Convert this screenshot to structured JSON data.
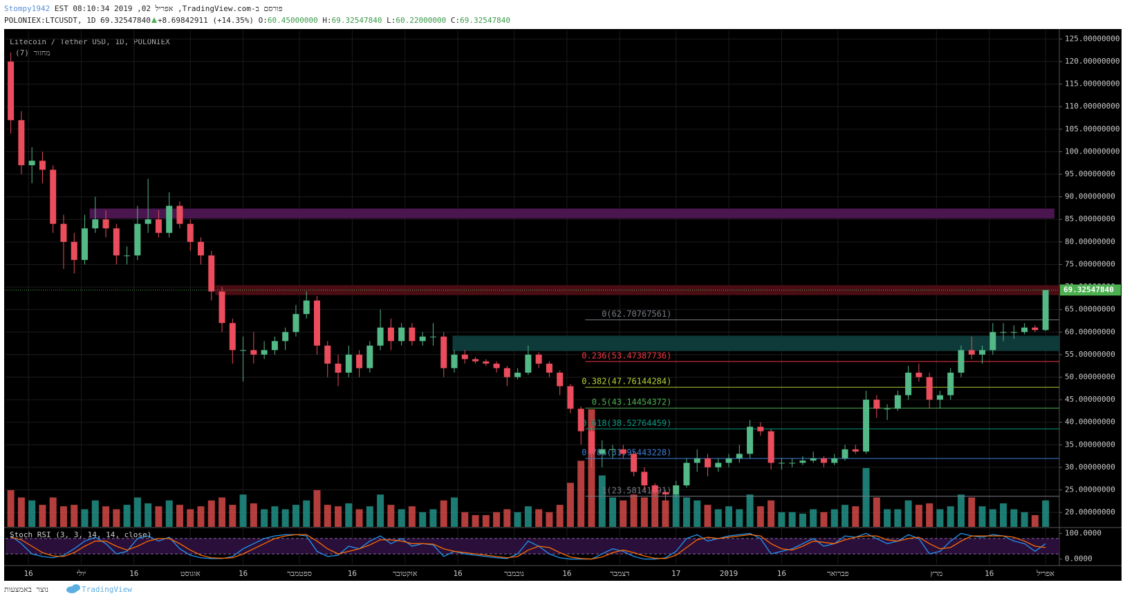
{
  "header": {
    "author": "Stompy1942",
    "published": "פורסם ב-TradingView.com, אפריל 02, 2019 08:10:34 EST",
    "symbol": "POLONIEX:LTCUSDT, 1D",
    "last": "69.32547840",
    "change": "+8.69842911 (+14.35%)",
    "ohlc_labels": [
      "O:",
      "H:",
      "L:",
      "C:"
    ],
    "ohlc_values": [
      "60.45000000",
      "69.32547840",
      "60.22000000",
      "69.32547840"
    ]
  },
  "footer": {
    "made_with": "נוצר באמצעות",
    "brand": "TradingView"
  },
  "chart_data": {
    "type": "candlestick",
    "title": "Litecoin / Tether USD, 1D, POLONIEX",
    "volume_label": "מחזור (7)",
    "up_color": "#53b987",
    "down_color": "#eb4d5c",
    "grid": true,
    "xlim": [
      0,
      299.4
    ],
    "xticks": [
      {
        "value": 6.5,
        "label": "16"
      },
      {
        "value": 21.5,
        "label": "יולי"
      },
      {
        "value": 36.5,
        "label": "16"
      },
      {
        "value": 52.5,
        "label": "אוגוסט"
      },
      {
        "value": 67.5,
        "label": "16"
      },
      {
        "value": 83.5,
        "label": "ספטמבר"
      },
      {
        "value": 98.5,
        "label": "16"
      },
      {
        "value": 113.5,
        "label": "אוקטובר"
      },
      {
        "value": 128.5,
        "label": "16"
      },
      {
        "value": 144.5,
        "label": "נובמבר"
      },
      {
        "value": 159.5,
        "label": "16"
      },
      {
        "value": 174.5,
        "label": "דצמבר"
      },
      {
        "value": 190.5,
        "label": "17"
      },
      {
        "value": 205.5,
        "label": "2019"
      },
      {
        "value": 220.5,
        "label": "16"
      },
      {
        "value": 236.5,
        "label": "פברואר"
      },
      {
        "value": 264.5,
        "label": "מרץ"
      },
      {
        "value": 279.5,
        "label": "16"
      },
      {
        "value": 295.5,
        "label": "אפריל"
      }
    ],
    "ylim": [
      16.8,
      126.9
    ],
    "yticks": [
      {
        "value": 20,
        "label": "20.00000000"
      },
      {
        "value": 25,
        "label": "25.00000000"
      },
      {
        "value": 30,
        "label": "30.00000000"
      },
      {
        "value": 35,
        "label": "35.00000000"
      },
      {
        "value": 40,
        "label": "40.00000000"
      },
      {
        "value": 45,
        "label": "45.00000000"
      },
      {
        "value": 50,
        "label": "50.00000000"
      },
      {
        "value": 55,
        "label": "55.00000000"
      },
      {
        "value": 60,
        "label": "60.00000000"
      },
      {
        "value": 65,
        "label": "65.00000000"
      },
      {
        "value": 70,
        "label": "70.00000000"
      },
      {
        "value": 75,
        "label": "75.00000000"
      },
      {
        "value": 80,
        "label": "80.00000000"
      },
      {
        "value": 85,
        "label": "85.00000000"
      },
      {
        "value": 90,
        "label": "90.00000000"
      },
      {
        "value": 95,
        "label": "95.00000000"
      },
      {
        "value": 100,
        "label": "100.00000000"
      },
      {
        "value": 105,
        "label": "105.00000000"
      },
      {
        "value": 110,
        "label": "110.00000000"
      },
      {
        "value": 115,
        "label": "115.00000000"
      },
      {
        "value": 120,
        "label": "120.00000000"
      },
      {
        "value": 125,
        "label": "125.00000000"
      }
    ],
    "ohlc": [
      [
        120,
        122,
        104,
        107
      ],
      [
        107,
        109,
        95,
        97
      ],
      [
        97,
        101,
        93,
        98
      ],
      [
        98,
        100,
        93,
        96
      ],
      [
        96,
        97,
        82,
        84
      ],
      [
        84,
        86,
        74,
        80
      ],
      [
        80,
        82,
        73,
        76
      ],
      [
        76,
        86,
        75,
        83
      ],
      [
        83,
        90,
        82,
        85
      ],
      [
        85,
        87,
        81,
        83
      ],
      [
        83,
        84,
        75,
        77
      ],
      [
        77,
        79,
        75,
        77
      ],
      [
        77,
        88,
        76,
        84
      ],
      [
        84,
        94,
        82,
        85
      ],
      [
        85,
        87,
        81,
        82
      ],
      [
        82,
        91,
        81,
        88
      ],
      [
        88,
        89,
        83,
        84
      ],
      [
        84,
        85,
        78,
        80
      ],
      [
        80,
        81,
        75,
        77
      ],
      [
        77,
        78,
        67,
        69
      ],
      [
        69,
        70,
        60,
        62
      ],
      [
        62,
        63,
        53,
        56
      ],
      [
        56,
        59,
        49,
        56
      ],
      [
        56,
        60,
        53,
        55
      ],
      [
        55,
        58,
        54,
        56
      ],
      [
        56,
        59,
        55,
        58
      ],
      [
        58,
        61,
        56,
        60
      ],
      [
        60,
        66,
        59,
        64
      ],
      [
        64,
        69,
        63,
        67
      ],
      [
        67,
        68,
        55,
        57
      ],
      [
        57,
        58,
        50,
        53
      ],
      [
        53,
        55,
        48,
        51
      ],
      [
        51,
        57,
        50,
        55
      ],
      [
        55,
        56,
        50,
        52
      ],
      [
        52,
        58,
        51,
        57
      ],
      [
        57,
        65,
        56,
        61
      ],
      [
        61,
        63,
        56,
        58
      ],
      [
        58,
        62,
        57,
        61
      ],
      [
        61,
        62,
        57,
        58
      ],
      [
        58,
        60,
        57,
        59
      ],
      [
        59,
        62,
        57,
        59
      ],
      [
        59,
        60,
        50,
        52
      ],
      [
        52,
        56,
        51,
        55
      ],
      [
        55,
        56,
        53,
        54
      ],
      [
        54,
        54.5,
        53,
        53.5
      ],
      [
        53.5,
        54,
        52.5,
        53
      ],
      [
        53,
        53.5,
        51,
        52
      ],
      [
        52,
        52.5,
        48,
        50
      ],
      [
        50,
        52,
        49.5,
        51
      ],
      [
        51,
        57,
        50.5,
        55
      ],
      [
        55,
        55.5,
        52,
        53
      ],
      [
        53,
        53.5,
        50,
        51
      ],
      [
        51,
        51.5,
        46,
        48
      ],
      [
        48,
        48.5,
        42,
        43
      ],
      [
        43,
        43.5,
        35,
        38
      ],
      [
        38,
        39,
        30,
        33
      ],
      [
        33,
        36,
        30,
        34
      ],
      [
        34,
        35,
        32,
        34
      ],
      [
        34,
        35,
        32,
        33
      ],
      [
        33,
        33.5,
        28,
        29
      ],
      [
        29,
        30,
        25,
        26
      ],
      [
        26,
        26.5,
        23.5,
        24.5
      ],
      [
        24.5,
        25,
        22.5,
        24
      ],
      [
        24,
        27,
        23.5,
        26
      ],
      [
        26,
        32,
        25.5,
        31
      ],
      [
        31,
        34,
        29,
        32
      ],
      [
        32,
        33,
        28,
        30
      ],
      [
        30,
        32,
        29,
        31
      ],
      [
        31,
        33,
        30,
        32
      ],
      [
        32,
        35,
        31,
        33
      ],
      [
        33,
        40.5,
        32,
        39
      ],
      [
        39,
        40,
        37,
        38
      ],
      [
        38,
        38.5,
        29.5,
        31
      ],
      [
        31,
        32,
        29.5,
        31
      ],
      [
        31,
        32,
        30,
        31
      ],
      [
        31,
        32.5,
        30.5,
        31.5
      ],
      [
        31.5,
        33.5,
        31,
        32
      ],
      [
        32,
        32.5,
        30,
        31
      ],
      [
        31,
        33,
        30.5,
        32
      ],
      [
        32,
        35,
        31.5,
        34
      ],
      [
        34,
        35,
        33,
        33.5
      ],
      [
        33.5,
        47,
        33,
        45
      ],
      [
        45,
        46,
        41,
        43
      ],
      [
        43,
        44,
        40.5,
        43
      ],
      [
        43,
        47,
        42.5,
        46
      ],
      [
        46,
        52.5,
        45,
        51
      ],
      [
        51,
        53,
        49,
        50
      ],
      [
        50,
        51,
        43,
        45
      ],
      [
        45,
        47,
        43,
        46
      ],
      [
        46,
        52,
        45,
        51
      ],
      [
        51,
        57,
        50,
        56
      ],
      [
        56,
        59,
        54,
        55
      ],
      [
        55,
        57,
        53,
        56
      ],
      [
        56,
        62,
        55,
        60
      ],
      [
        60,
        62,
        58,
        60
      ],
      [
        60,
        61.5,
        58.5,
        60
      ],
      [
        60,
        62,
        59.5,
        61
      ],
      [
        61,
        61.5,
        60,
        60.45
      ],
      [
        60.45,
        69.3254784,
        60.22,
        69.3254784
      ]
    ],
    "volume": [
      25,
      20,
      18,
      15,
      20,
      14,
      15,
      12,
      18,
      14,
      12,
      15,
      20,
      16,
      14,
      18,
      15,
      12,
      14,
      18,
      20,
      15,
      22,
      16,
      12,
      14,
      12,
      15,
      18,
      25,
      15,
      14,
      16,
      12,
      14,
      22,
      15,
      12,
      14,
      10,
      12,
      18,
      20,
      10,
      8,
      8,
      10,
      12,
      10,
      14,
      12,
      10,
      15,
      30,
      45,
      80,
      35,
      20,
      18,
      22,
      20,
      25,
      18,
      22,
      20,
      18,
      15,
      12,
      14,
      12,
      22,
      14,
      18,
      10,
      10,
      9,
      12,
      10,
      12,
      15,
      14,
      40,
      20,
      12,
      12,
      18,
      15,
      16,
      12,
      14,
      22,
      20,
      14,
      12,
      16,
      12,
      10,
      8,
      18
    ],
    "zones": [
      {
        "from": 85.2,
        "to": 87.4,
        "start": 23.9,
        "end": 298,
        "color": "#4b1650"
      },
      {
        "from": 68.2,
        "to": 70.4,
        "start": 59.6,
        "end": 299.4,
        "color": "#4a0d14"
      },
      {
        "from": 55.8,
        "to": 59.2,
        "start": 127,
        "end": 299.4,
        "color": "#0e3a3a"
      }
    ],
    "fib": {
      "start": 164.7,
      "end": 299.4,
      "levels": [
        {
          "label": "0(62.70767561)",
          "value": 62.70767561,
          "color": "#787b86"
        },
        {
          "label": "0.236(53.47387736)",
          "value": 53.47387736,
          "color": "#f23645"
        },
        {
          "label": "0.382(47.76144284)",
          "value": 47.76144284,
          "color": "#b5d334"
        },
        {
          "label": "0.5(43.14454372)",
          "value": 43.14454372,
          "color": "#4caf50"
        },
        {
          "label": "0.618(38.52764459)",
          "value": 38.52764459,
          "color": "#089981"
        },
        {
          "label": "0.786(31.95443228)",
          "value": 31.95443228,
          "color": "#3f7fd8"
        },
        {
          "label": "1(23.58141191)",
          "value": 23.58141191,
          "color": "#787b86"
        }
      ]
    },
    "last_price": {
      "value": 69.3254784,
      "label": "69.32547840",
      "color": "#4caf50"
    },
    "stoch": {
      "title": "Stoch RSI (3, 3, 14, 14, close)",
      "ylim": [
        -20,
        120
      ],
      "yticks": [
        {
          "value": 100,
          "label": "100.0000"
        },
        {
          "value": 0,
          "label": "0.0000"
        }
      ],
      "bands": [
        20,
        80
      ],
      "k_color": "#2196f3",
      "d_color": "#ff6d00",
      "k": [
        90,
        60,
        20,
        10,
        5,
        15,
        40,
        70,
        85,
        60,
        20,
        30,
        80,
        90,
        70,
        85,
        40,
        15,
        5,
        2,
        2,
        10,
        40,
        60,
        80,
        90,
        95,
        95,
        90,
        30,
        10,
        15,
        50,
        40,
        70,
        90,
        60,
        80,
        50,
        60,
        55,
        10,
        30,
        20,
        15,
        10,
        5,
        2,
        20,
        70,
        50,
        20,
        5,
        0,
        0,
        0,
        20,
        40,
        30,
        10,
        0,
        0,
        5,
        30,
        80,
        95,
        70,
        80,
        90,
        95,
        100,
        80,
        20,
        30,
        40,
        60,
        80,
        50,
        60,
        90,
        85,
        100,
        80,
        60,
        70,
        95,
        80,
        20,
        30,
        70,
        100,
        90,
        85,
        95,
        90,
        70,
        60,
        30,
        60
      ],
      "d": [
        85,
        75,
        50,
        25,
        12,
        10,
        25,
        50,
        70,
        70,
        50,
        35,
        50,
        70,
        80,
        80,
        60,
        35,
        15,
        5,
        3,
        5,
        20,
        40,
        60,
        80,
        90,
        95,
        95,
        70,
        40,
        20,
        30,
        40,
        55,
        75,
        75,
        70,
        60,
        60,
        58,
        40,
        30,
        25,
        20,
        15,
        10,
        5,
        10,
        35,
        50,
        45,
        25,
        8,
        2,
        0,
        8,
        25,
        35,
        25,
        12,
        3,
        2,
        15,
        45,
        75,
        85,
        80,
        85,
        90,
        95,
        90,
        60,
        40,
        35,
        50,
        70,
        65,
        60,
        75,
        85,
        90,
        90,
        75,
        70,
        80,
        85,
        60,
        40,
        45,
        70,
        90,
        90,
        90,
        90,
        85,
        70,
        50,
        45
      ]
    }
  }
}
